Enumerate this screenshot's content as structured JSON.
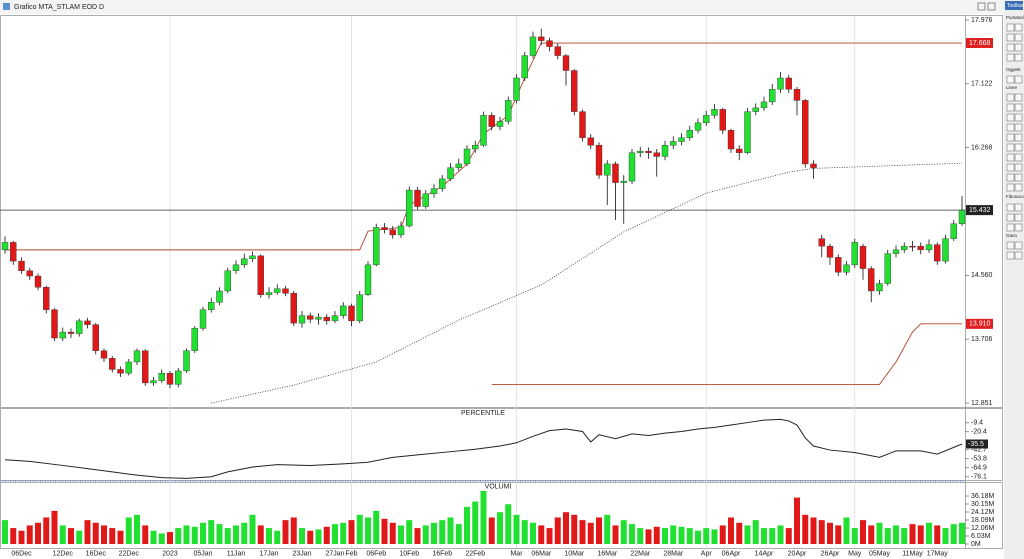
{
  "window_title": "Grafico MTA_STLAM EOD D",
  "toolbar": {
    "title": "Toolbar",
    "sections": [
      "Puntatori",
      "Oggetti",
      "Linee",
      "Fibonacci",
      "Gann"
    ]
  },
  "chart_data": [
    {
      "type": "candlestick",
      "up_color": "#22e032",
      "down_color": "#e01818",
      "ylim": [
        12.851,
        17.976
      ],
      "yticks": [
        12.851,
        13.706,
        {
          "value": 14.56,
          "label": "14.560"
        },
        16.268,
        17.122,
        17.976
      ],
      "categories": [
        null,
        null,
        "06Dec",
        null,
        null,
        null,
        null,
        "12Dec",
        null,
        null,
        null,
        "16Dec",
        null,
        null,
        null,
        "22Dec",
        null,
        null,
        null,
        null,
        "2023",
        null,
        null,
        null,
        "05Jan",
        null,
        null,
        null,
        "11Jan",
        null,
        null,
        null,
        "17Jan",
        null,
        null,
        null,
        "23Jan",
        null,
        null,
        null,
        "27Jan",
        null,
        "Feb",
        null,
        null,
        "06Feb",
        null,
        null,
        null,
        "10Feb",
        null,
        null,
        null,
        "16Feb",
        null,
        null,
        null,
        "22Feb",
        null,
        null,
        null,
        null,
        "Mar",
        null,
        null,
        "06Mar",
        null,
        null,
        null,
        "10Mar",
        null,
        null,
        null,
        "16Mar",
        null,
        null,
        null,
        "22Mar",
        null,
        null,
        null,
        "28Mar",
        null,
        null,
        null,
        "Apr",
        null,
        null,
        "06Apr",
        null,
        null,
        null,
        "14Apr",
        null,
        null,
        null,
        "20Apr",
        null,
        null,
        null,
        "26Apr",
        null,
        null,
        "May",
        null,
        null,
        "05May",
        null,
        null,
        null,
        "11May",
        null,
        null,
        "17May",
        null,
        null,
        null
      ],
      "open": [
        14.9,
        15.0,
        14.75,
        14.62,
        14.55,
        14.4,
        14.1,
        13.72,
        13.8,
        13.78,
        13.95,
        13.9,
        13.55,
        13.45,
        13.3,
        13.25,
        13.4,
        13.55,
        13.12,
        13.15,
        13.25,
        13.1,
        13.28,
        13.55,
        13.85,
        14.1,
        14.2,
        14.35,
        14.62,
        14.7,
        14.78,
        14.82,
        14.3,
        14.33,
        14.38,
        14.32,
        13.92,
        14.02,
        13.97,
        14.0,
        13.95,
        14.02,
        14.15,
        13.95,
        14.3,
        14.7,
        15.2,
        15.17,
        15.1,
        15.22,
        15.7,
        15.48,
        15.65,
        15.72,
        15.85,
        16.0,
        16.05,
        16.25,
        16.3,
        16.7,
        16.55,
        16.62,
        16.9,
        17.2,
        17.5,
        17.75,
        17.7,
        17.62,
        17.5,
        17.3,
        16.75,
        16.4,
        16.3,
        15.9,
        16.05,
        15.8,
        15.82,
        16.2,
        16.22,
        16.2,
        16.15,
        16.3,
        16.35,
        16.4,
        16.5,
        16.6,
        16.7,
        16.78,
        16.5,
        16.25,
        16.2,
        16.75,
        16.8,
        16.88,
        17.05,
        17.2,
        17.05,
        16.9,
        16.05,
        15.05,
        14.95,
        14.8,
        14.6,
        14.7,
        14.95,
        14.65,
        14.35,
        14.45,
        14.85,
        14.9,
        14.95,
        14.95,
        14.9,
        14.97,
        14.75,
        15.05,
        15.25
      ],
      "high": [
        15.08,
        15.02,
        14.8,
        14.66,
        14.58,
        14.42,
        14.12,
        13.86,
        13.85,
        13.98,
        13.99,
        13.92,
        13.58,
        13.48,
        13.34,
        13.44,
        13.58,
        13.57,
        13.2,
        13.3,
        13.28,
        13.32,
        13.58,
        13.88,
        14.14,
        14.26,
        14.4,
        14.66,
        14.76,
        14.85,
        14.88,
        14.84,
        14.4,
        14.44,
        14.42,
        14.35,
        14.08,
        14.06,
        14.05,
        14.04,
        14.08,
        14.2,
        14.18,
        14.35,
        14.75,
        15.25,
        15.26,
        15.22,
        15.28,
        15.75,
        15.74,
        15.7,
        15.78,
        15.9,
        16.06,
        16.12,
        16.3,
        16.36,
        16.75,
        16.74,
        16.68,
        16.95,
        17.25,
        17.55,
        17.82,
        17.86,
        17.74,
        17.66,
        17.52,
        17.32,
        16.78,
        16.45,
        16.34,
        16.1,
        16.08,
        15.9,
        16.25,
        16.28,
        16.27,
        16.25,
        16.36,
        16.42,
        16.46,
        16.56,
        16.66,
        16.76,
        16.85,
        16.8,
        16.52,
        16.3,
        16.8,
        16.86,
        16.95,
        17.12,
        17.28,
        17.24,
        17.08,
        16.92,
        16.1,
        15.1,
        14.98,
        14.84,
        14.75,
        15.05,
        14.98,
        14.68,
        14.5,
        14.9,
        14.96,
        15.0,
        15.02,
        15.0,
        15.04,
        15.0,
        15.1,
        15.3,
        15.62
      ],
      "low": [
        14.85,
        14.7,
        14.58,
        14.5,
        14.36,
        14.05,
        13.68,
        13.68,
        13.72,
        13.74,
        13.85,
        13.5,
        13.4,
        13.26,
        13.2,
        13.22,
        13.36,
        13.08,
        13.08,
        13.12,
        13.05,
        13.06,
        13.25,
        13.52,
        13.82,
        14.06,
        14.16,
        14.32,
        14.58,
        14.66,
        14.74,
        14.26,
        14.25,
        14.3,
        14.28,
        13.88,
        13.86,
        13.92,
        13.9,
        13.9,
        13.92,
        13.98,
        13.88,
        13.92,
        14.28,
        14.68,
        15.12,
        15.05,
        15.06,
        15.2,
        15.44,
        15.45,
        15.6,
        15.68,
        15.82,
        15.96,
        16.02,
        16.2,
        16.28,
        16.5,
        16.5,
        16.58,
        16.86,
        17.16,
        17.46,
        17.64,
        17.56,
        17.45,
        17.1,
        16.7,
        16.35,
        16.25,
        15.85,
        15.5,
        15.3,
        15.25,
        15.78,
        16.14,
        16.12,
        15.88,
        16.1,
        16.25,
        16.3,
        16.36,
        16.46,
        16.56,
        16.66,
        16.45,
        16.2,
        16.1,
        16.18,
        16.7,
        16.76,
        16.84,
        17.0,
        17.0,
        16.7,
        16.0,
        15.85,
        14.8,
        14.7,
        14.55,
        14.56,
        14.66,
        14.5,
        14.2,
        14.3,
        14.42,
        14.8,
        14.86,
        14.88,
        14.84,
        14.86,
        14.7,
        14.72,
        15.02,
        15.22
      ],
      "close": [
        15.0,
        14.75,
        14.62,
        14.55,
        14.4,
        14.1,
        13.72,
        13.8,
        13.78,
        13.95,
        13.9,
        13.55,
        13.45,
        13.3,
        13.25,
        13.4,
        13.55,
        13.12,
        13.15,
        13.25,
        13.1,
        13.28,
        13.55,
        13.85,
        14.1,
        14.2,
        14.35,
        14.62,
        14.7,
        14.78,
        14.82,
        14.3,
        14.33,
        14.38,
        14.32,
        13.92,
        14.02,
        13.97,
        14.0,
        13.95,
        14.02,
        14.15,
        13.95,
        14.3,
        14.7,
        15.2,
        15.17,
        15.1,
        15.22,
        15.7,
        15.48,
        15.65,
        15.72,
        15.85,
        16.0,
        16.05,
        16.25,
        16.3,
        16.7,
        16.55,
        16.62,
        16.9,
        17.2,
        17.5,
        17.75,
        17.7,
        17.62,
        17.5,
        17.3,
        16.75,
        16.4,
        16.3,
        15.9,
        16.05,
        15.8,
        15.82,
        16.2,
        16.22,
        16.2,
        16.15,
        16.3,
        16.35,
        16.4,
        16.5,
        16.6,
        16.7,
        16.78,
        16.5,
        16.25,
        16.2,
        16.75,
        16.8,
        16.88,
        17.05,
        17.2,
        17.05,
        16.9,
        16.05,
        16.0,
        14.95,
        14.8,
        14.6,
        14.7,
        15.0,
        14.65,
        14.35,
        14.45,
        14.85,
        14.9,
        14.95,
        14.95,
        14.9,
        14.97,
        14.75,
        15.05,
        15.25,
        15.432
      ],
      "overlays": [
        {
          "style": "solid",
          "color": "#b4442a",
          "x": [
            0,
            43,
            44,
            48,
            49,
            53,
            56,
            58,
            61,
            63,
            65,
            116
          ],
          "values": [
            14.9,
            14.9,
            15.15,
            15.2,
            15.5,
            15.75,
            16.05,
            16.45,
            16.7,
            17.2,
            17.668,
            17.668
          ],
          "label": "17.668"
        },
        {
          "style": "solid",
          "color": "#b4442a",
          "x": [
            59,
            106,
            108,
            110,
            111,
            116
          ],
          "values": [
            13.1,
            13.1,
            13.4,
            13.8,
            13.91,
            13.91
          ],
          "label": "13.910"
        },
        {
          "style": "dotted",
          "color": "#333333",
          "x": [
            25,
            35,
            45,
            55,
            65,
            75,
            85,
            95,
            98,
            116
          ],
          "values": [
            12.85,
            13.09,
            13.4,
            13.96,
            14.43,
            15.14,
            15.66,
            15.94,
            15.99,
            16.06
          ]
        }
      ]
    },
    {
      "type": "line",
      "title": "PERCENTILE",
      "color": "#222222",
      "ylim": [
        -80,
        9
      ],
      "yticks": [
        -9.4,
        -20.4,
        -42.7,
        -53.8,
        -64.9,
        -76.1
      ],
      "x": [
        0,
        3,
        7,
        10,
        13,
        16,
        19,
        22,
        25,
        27,
        30,
        33,
        37,
        41,
        44,
        47,
        50,
        54,
        57,
        60,
        62,
        64,
        66,
        68,
        70,
        71,
        72,
        74,
        76,
        78,
        80,
        82,
        84,
        86,
        88,
        90,
        92,
        94,
        95,
        96,
        97,
        98,
        100,
        103,
        106,
        108,
        111,
        113,
        116
      ],
      "values": [
        -55,
        -57,
        -62,
        -66,
        -70,
        -74,
        -77,
        -78,
        -76,
        -70,
        -64,
        -61,
        -62,
        -60,
        -58,
        -52,
        -49,
        -45,
        -42,
        -38,
        -34,
        -26,
        -19,
        -17,
        -20,
        -33,
        -24,
        -29,
        -23,
        -25,
        -22,
        -20,
        -17,
        -15,
        -12,
        -9,
        -6,
        -5,
        -7,
        -12,
        -28,
        -38,
        -43,
        -46,
        -52,
        -44,
        -44,
        -48,
        -35.5
      ]
    },
    {
      "type": "bar",
      "title": "VOLUMI",
      "ylim": [
        0,
        46000000.0
      ],
      "yticks": [
        {
          "value": 0,
          "label": "0M"
        },
        {
          "value": 6030000,
          "label": "6.03M"
        },
        {
          "value": 12060000,
          "label": "12.06M"
        },
        {
          "value": 18090000,
          "label": "18.09M"
        },
        {
          "value": 24120000,
          "label": "24.12M"
        },
        {
          "value": 30150000,
          "label": "30.15M"
        },
        {
          "value": 36180000,
          "label": "36.18M"
        }
      ],
      "values": [
        18000000.0,
        12000000.0,
        10000000.0,
        14000000.0,
        16000000.0,
        20000000.0,
        25000000.0,
        14000000.0,
        12000000.0,
        10000000.0,
        18000000.0,
        16000000.0,
        14000000.0,
        12000000.0,
        10000000.0,
        20000000.0,
        22000000.0,
        14000000.0,
        10000000.0,
        8000000.0,
        9000000.0,
        12000000.0,
        14000000.0,
        13000000.0,
        16000000.0,
        18000000.0,
        15000000.0,
        12000000.0,
        14000000.0,
        16000000.0,
        22000000.0,
        14000000.0,
        12000000.0,
        10000000.0,
        18000000.0,
        20000000.0,
        12000000.0,
        10000000.0,
        11000000.0,
        13000000.0,
        15000000.0,
        16000000.0,
        18000000.0,
        22000000.0,
        20000000.0,
        25000000.0,
        19000000.0,
        16000000.0,
        14000000.0,
        18000000.0,
        12000000.0,
        14000000.0,
        16000000.0,
        18000000.0,
        20000000.0,
        15000000.0,
        28000000.0,
        32000000.0,
        40000000.0,
        20000000.0,
        24000000.0,
        30000000.0,
        22000000.0,
        18000000.0,
        16000000.0,
        14000000.0,
        12000000.0,
        20000000.0,
        24000000.0,
        22000000.0,
        18000000.0,
        16000000.0,
        20000000.0,
        22000000.0,
        14000000.0,
        18000000.0,
        15000000.0,
        12000000.0,
        11000000.0,
        13000000.0,
        12000000.0,
        14000000.0,
        13000000.0,
        12000000.0,
        10000000.0,
        12000000.0,
        11000000.0,
        14000000.0,
        20000000.0,
        16000000.0,
        14000000.0,
        18000000.0,
        12000000.0,
        12000000.0,
        14000000.0,
        12000000.0,
        35000000.0,
        22000000.0,
        20000000.0,
        18000000.0,
        16000000.0,
        14000000.0,
        20000000.0,
        12000000.0,
        18000000.0,
        14000000.0,
        16000000.0,
        12000000.0,
        14000000.0,
        12000000.0,
        15000000.0,
        14000000.0,
        16000000.0,
        14000000.0,
        12000000.0,
        15000000.0,
        16000000.0
      ]
    }
  ]
}
